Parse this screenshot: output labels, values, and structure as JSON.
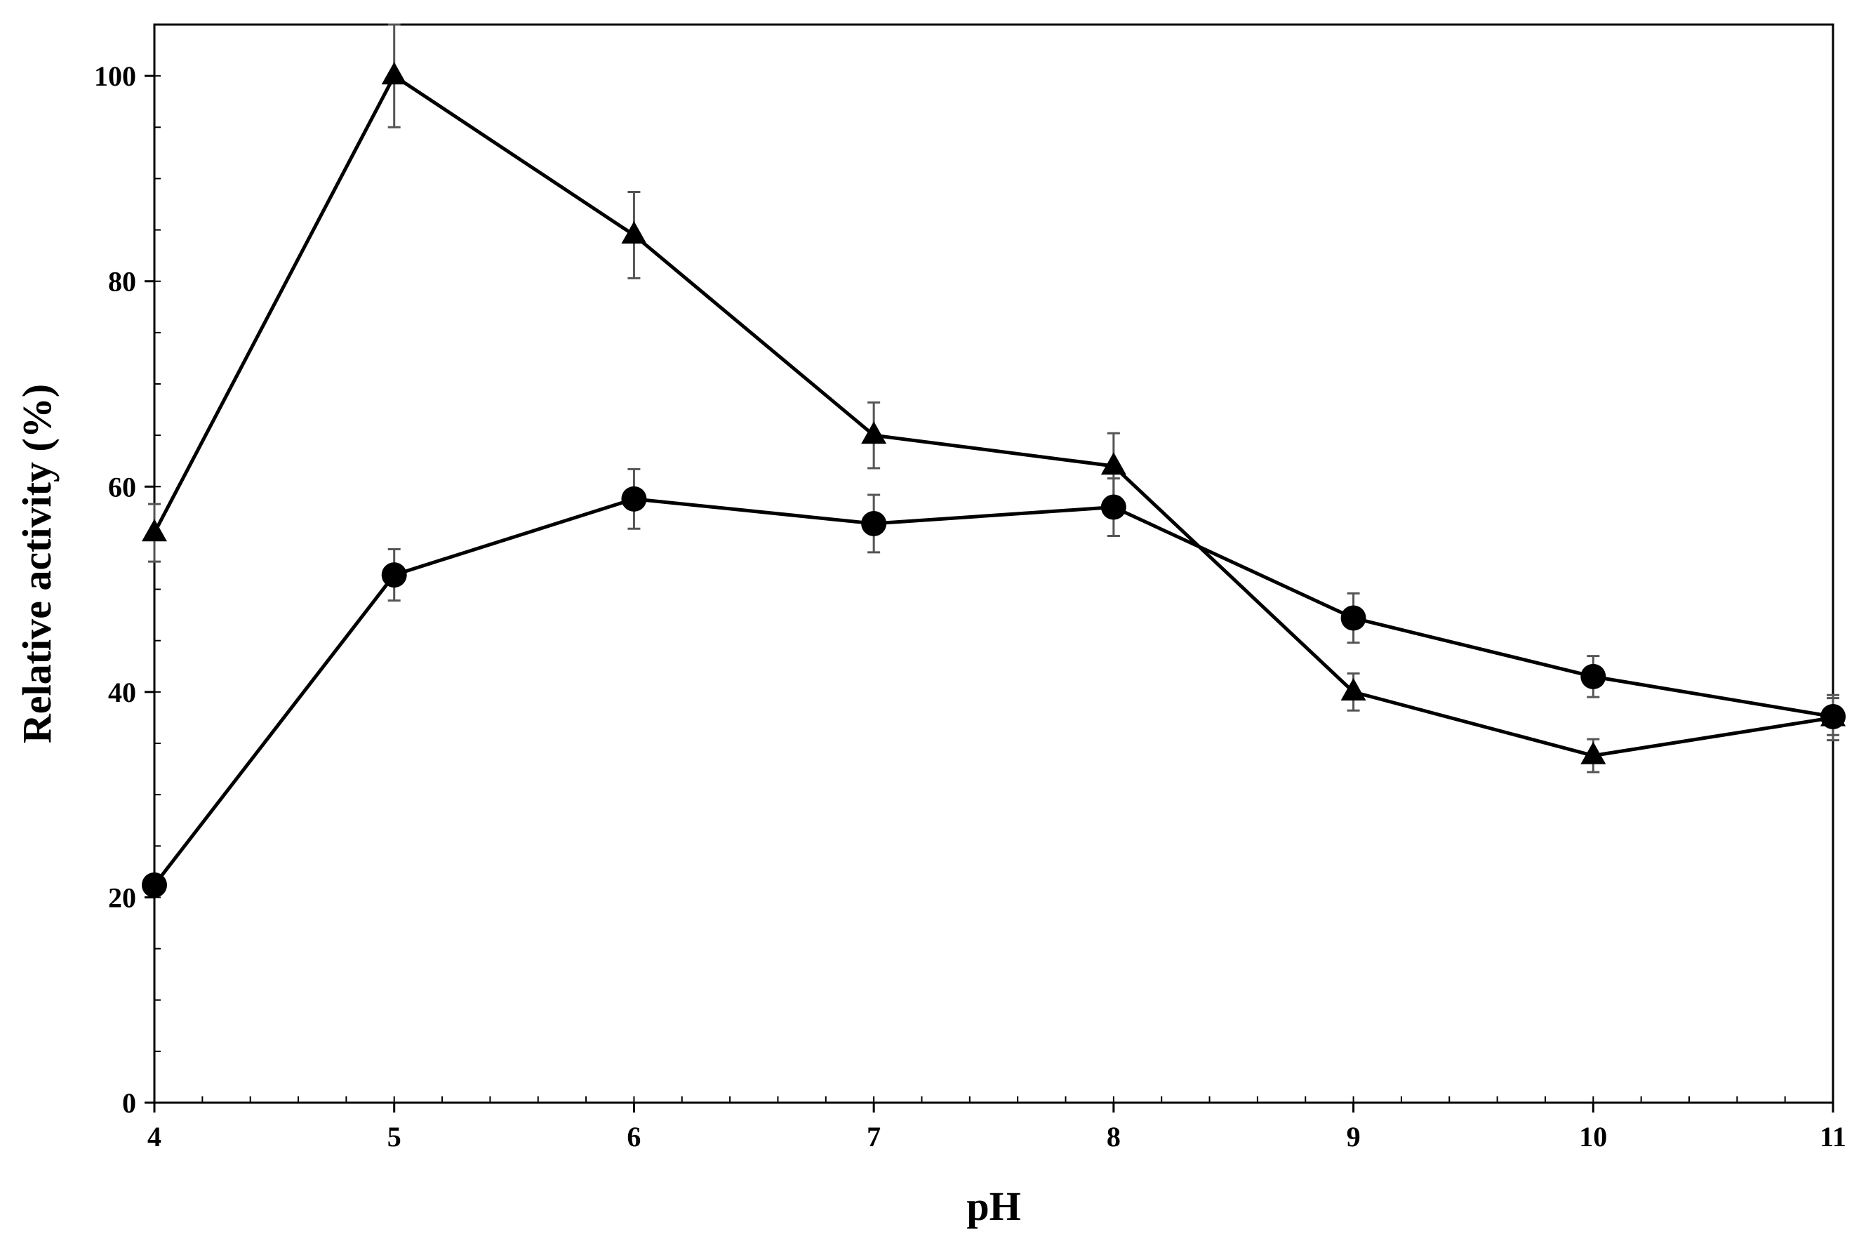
{
  "chart_data": {
    "type": "line",
    "xlabel": "pH",
    "ylabel": "Relative activity (%)",
    "xlim": [
      4,
      11
    ],
    "ylim": [
      0,
      105
    ],
    "x_ticks": [
      4,
      5,
      6,
      7,
      8,
      9,
      10,
      11
    ],
    "x_tick_labels": [
      "4",
      "5",
      "6",
      "7",
      "8",
      "9",
      "10",
      "11"
    ],
    "y_ticks": [
      0,
      20,
      40,
      60,
      80,
      100
    ],
    "y_tick_labels": [
      "0",
      "20",
      "40",
      "60",
      "80",
      "100"
    ],
    "x_minor_step": 0.2,
    "y_minor_step": 5,
    "grid": false,
    "legend": "none",
    "series": [
      {
        "marker": "triangle",
        "x": [
          4,
          5,
          6,
          7,
          8,
          9,
          10,
          11
        ],
        "y": [
          55.5,
          100,
          84.5,
          65,
          62,
          40,
          33.8,
          37.5
        ],
        "error": [
          2.8,
          5,
          4.2,
          3.2,
          3.2,
          1.8,
          1.6,
          2.2
        ]
      },
      {
        "marker": "circle",
        "x": [
          4,
          5,
          6,
          7,
          8,
          9,
          10,
          11
        ],
        "y": [
          21.2,
          51.4,
          58.8,
          56.4,
          58,
          47.2,
          41.5,
          37.6
        ],
        "error": [
          0.8,
          2.5,
          2.9,
          2.8,
          2.8,
          2.4,
          2.0,
          1.8
        ]
      }
    ],
    "colors": {
      "line": "#000000",
      "marker": "#000000",
      "error_bar": "#555555",
      "axis": "#000000"
    }
  }
}
